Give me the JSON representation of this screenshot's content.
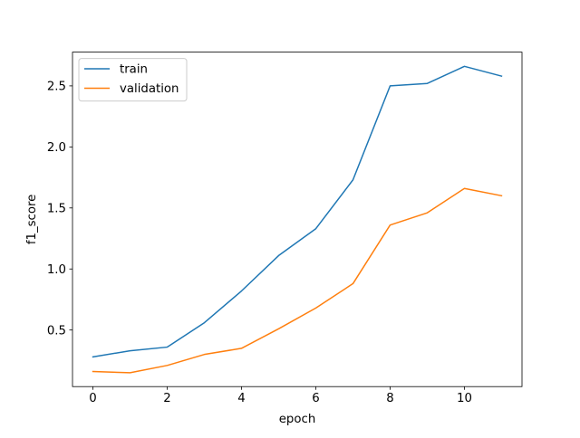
{
  "chart_data": {
    "type": "line",
    "title": "",
    "xlabel": "epoch",
    "ylabel": "f1_score",
    "x": [
      0,
      1,
      2,
      3,
      4,
      5,
      6,
      7,
      8,
      9,
      10,
      11
    ],
    "xlim": [
      -0.55,
      11.55
    ],
    "ylim": [
      0.0365,
      2.7765
    ],
    "xticks": [
      0,
      2,
      4,
      6,
      8,
      10
    ],
    "xtick_labels": [
      "0",
      "2",
      "4",
      "6",
      "8",
      "10"
    ],
    "yticks": [
      0.5,
      1.0,
      1.5,
      2.0,
      2.5
    ],
    "ytick_labels": [
      "0.5",
      "1.0",
      "1.5",
      "2.0",
      "2.5"
    ],
    "grid": false,
    "legend_position": "upper-left",
    "series": [
      {
        "name": "train",
        "color": "#1f77b4",
        "values": [
          0.28,
          0.33,
          0.36,
          0.56,
          0.82,
          1.11,
          1.33,
          1.73,
          2.5,
          2.52,
          2.66,
          2.58
        ]
      },
      {
        "name": "validation",
        "color": "#ff7f0e",
        "values": [
          0.16,
          0.15,
          0.21,
          0.3,
          0.35,
          0.51,
          0.68,
          0.88,
          1.36,
          1.46,
          1.66,
          1.6
        ]
      }
    ]
  }
}
